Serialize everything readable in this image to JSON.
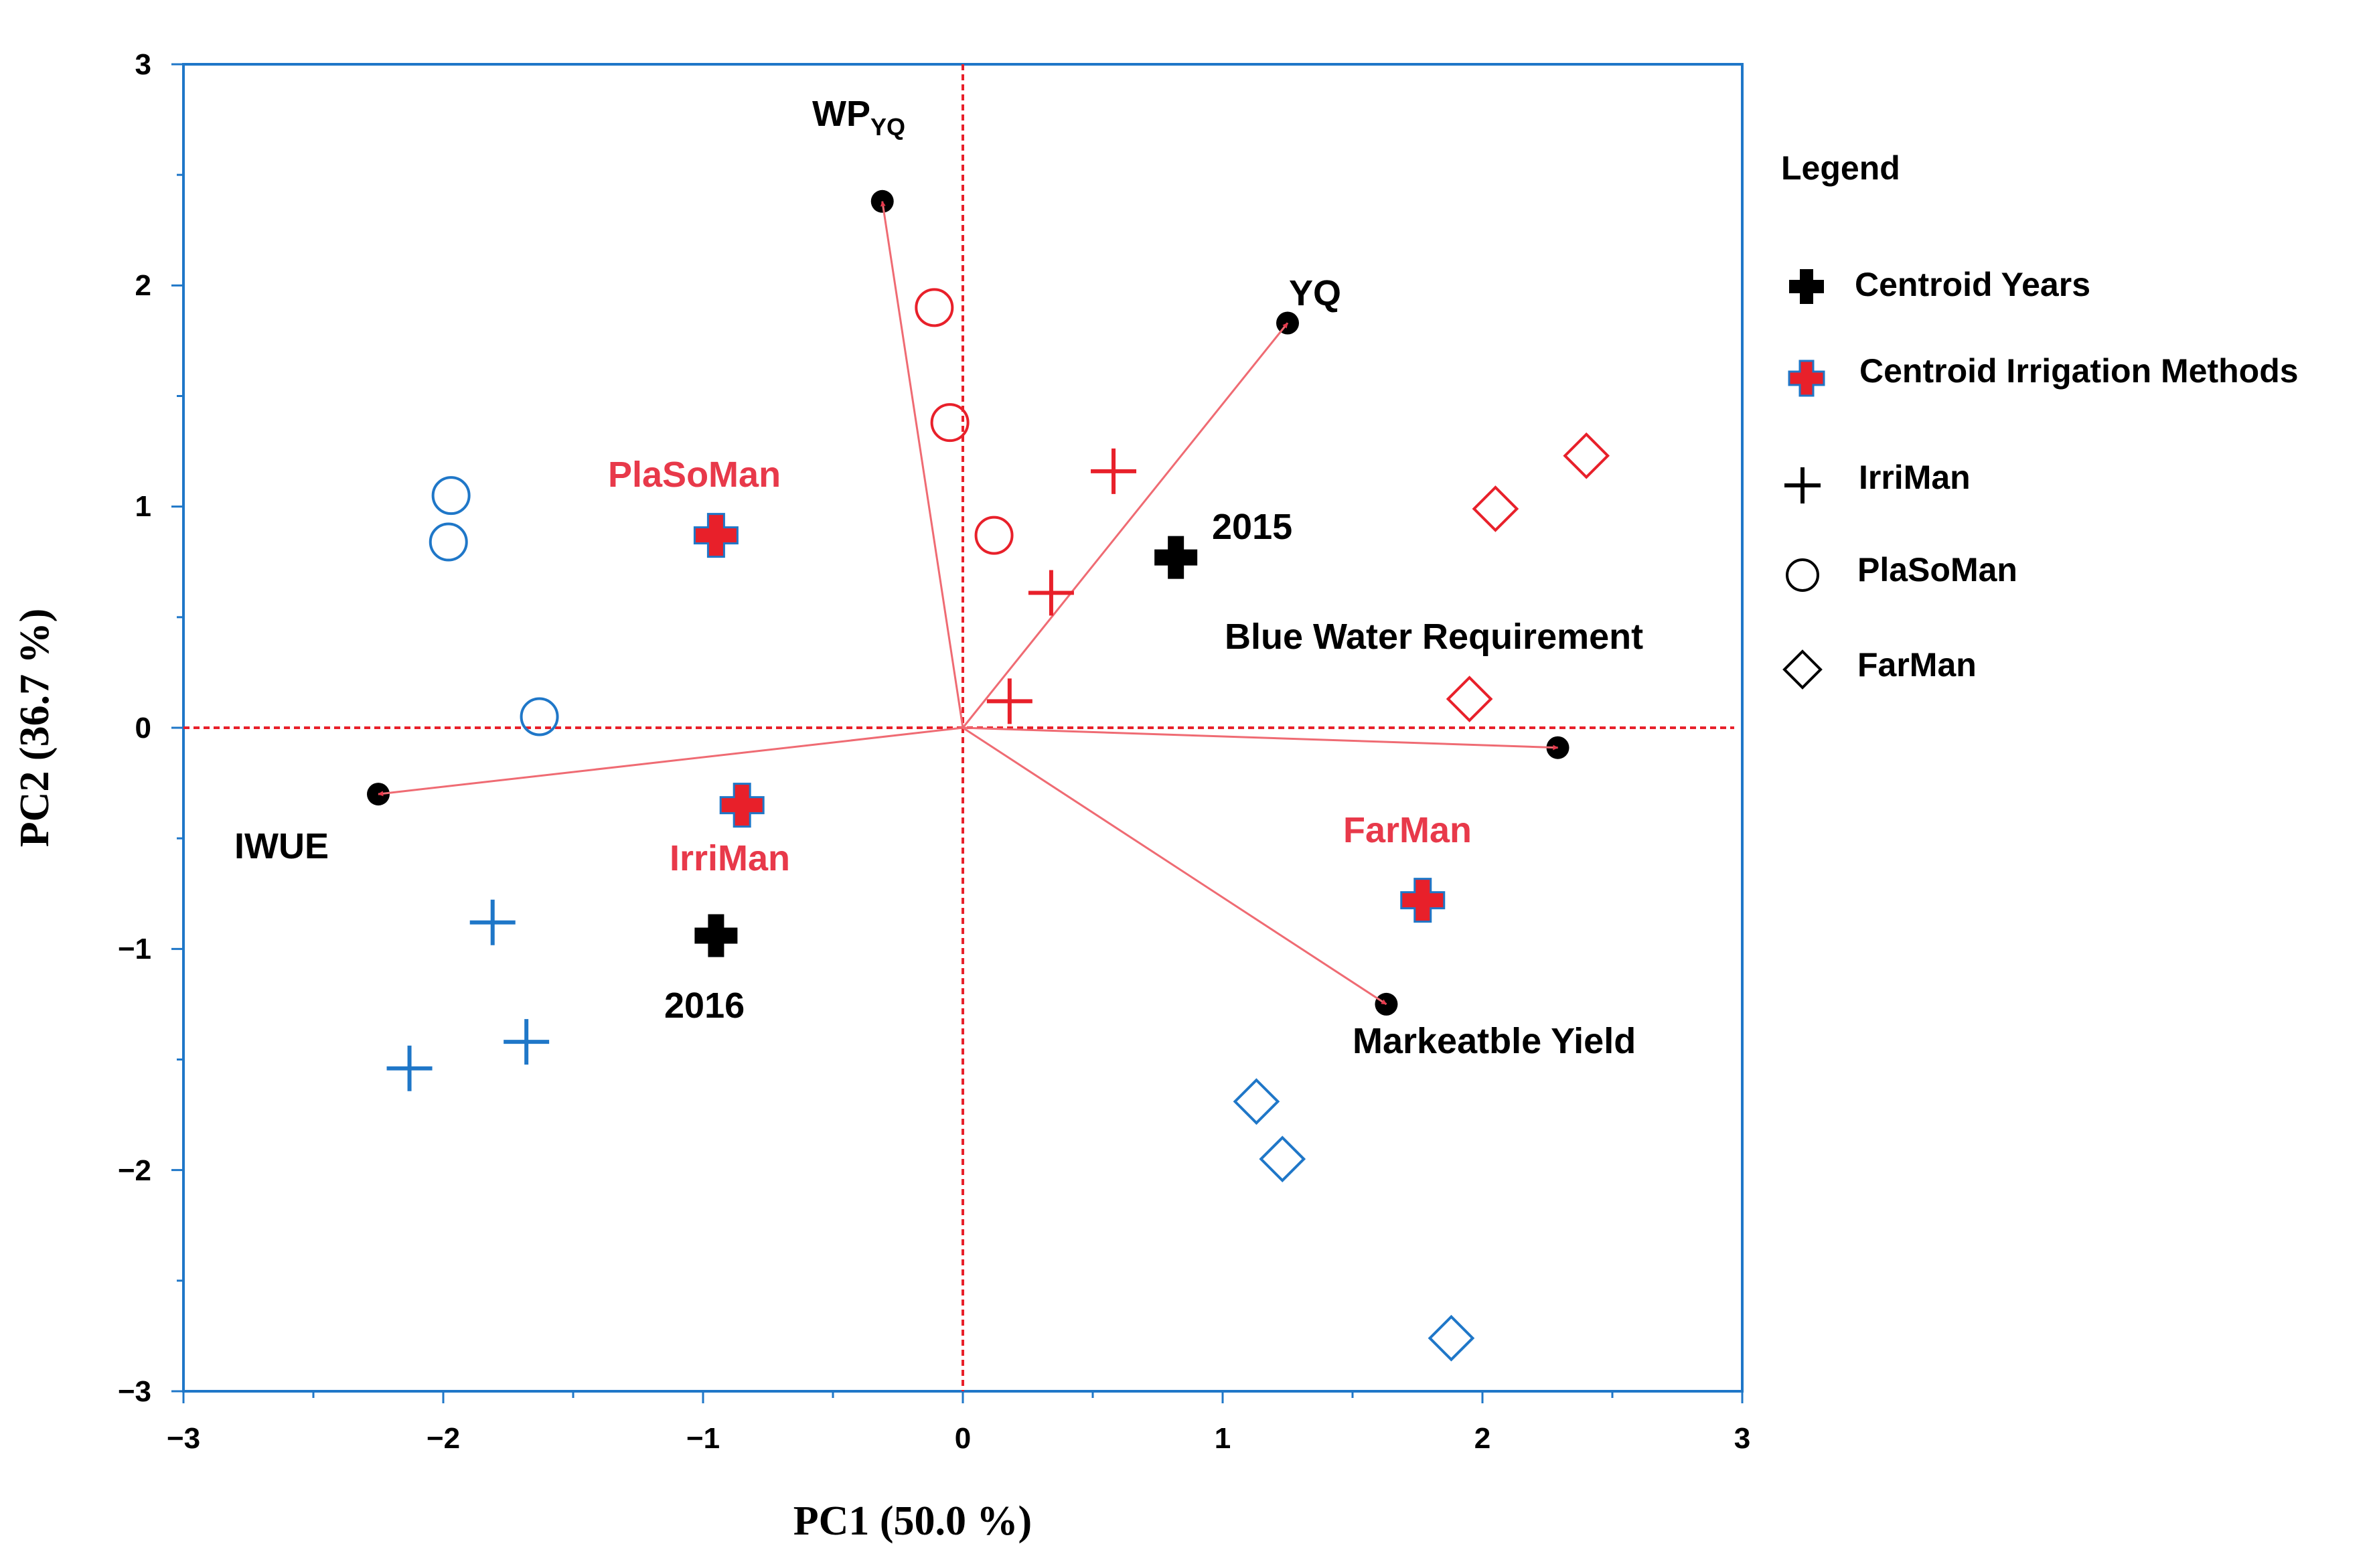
{
  "chart_data": {
    "type": "scatter",
    "subtype": "pca-biplot",
    "xlabel": "PC1  (50.0 %)",
    "ylabel": "PC2  (36.7 %)",
    "xlim": [
      -3,
      3
    ],
    "ylim": [
      -3,
      3
    ],
    "xticks": [
      -3,
      -2,
      -1,
      0,
      1,
      2,
      3
    ],
    "yticks": [
      -3,
      -2,
      -1,
      0,
      1,
      2,
      3
    ],
    "xtick_labels": [
      "−3",
      "−2",
      "−1",
      "0",
      "1",
      "2",
      "3"
    ],
    "ytick_labels": [
      "−3",
      "−2",
      "−1",
      "0",
      "1",
      "2",
      "3"
    ],
    "reference_lines": {
      "x": 0,
      "y": 0,
      "color": "#e8202a"
    },
    "colors": {
      "axis_frame": "#1f77c8",
      "blue": "#1f77c8",
      "red": "#e8202a",
      "black": "#000000",
      "arrow": "#ef6b73",
      "label_red": "#e8394a"
    },
    "loadings": [
      {
        "name": "WPYQ",
        "label": "WP",
        "label_sub": "YQ",
        "x": -0.31,
        "y": 2.38
      },
      {
        "name": "YQ",
        "label": "YQ",
        "x": 1.25,
        "y": 1.83
      },
      {
        "name": "Blue Water Requirement",
        "label": "Blue Water Requirement",
        "x": 2.29,
        "y": -0.09
      },
      {
        "name": "Markeatble Yield",
        "label": "Markeatble Yield",
        "x": 1.63,
        "y": -1.25
      },
      {
        "name": "IWUE",
        "label": "IWUE",
        "x": -2.25,
        "y": -0.3
      }
    ],
    "observations": [
      {
        "group": "PlaSoMan",
        "year": "2015",
        "marker": "circle",
        "color": "red",
        "x": -0.11,
        "y": 1.9
      },
      {
        "group": "PlaSoMan",
        "year": "2015",
        "marker": "circle",
        "color": "red",
        "x": -0.05,
        "y": 1.38
      },
      {
        "group": "PlaSoMan",
        "year": "2015",
        "marker": "circle",
        "color": "red",
        "x": 0.12,
        "y": 0.87
      },
      {
        "group": "PlaSoMan",
        "year": "2016",
        "marker": "circle",
        "color": "blue",
        "x": -1.97,
        "y": 1.05
      },
      {
        "group": "PlaSoMan",
        "year": "2016",
        "marker": "circle",
        "color": "blue",
        "x": -1.98,
        "y": 0.84
      },
      {
        "group": "PlaSoMan",
        "year": "2016",
        "marker": "circle",
        "color": "blue",
        "x": -1.63,
        "y": 0.05
      },
      {
        "group": "IrriMan",
        "year": "2015",
        "marker": "plus",
        "color": "red",
        "x": 0.58,
        "y": 1.16
      },
      {
        "group": "IrriMan",
        "year": "2015",
        "marker": "plus",
        "color": "red",
        "x": 0.34,
        "y": 0.61
      },
      {
        "group": "IrriMan",
        "year": "2015",
        "marker": "plus",
        "color": "red",
        "x": 0.18,
        "y": 0.12
      },
      {
        "group": "IrriMan",
        "year": "2016",
        "marker": "plus",
        "color": "blue",
        "x": -1.81,
        "y": -0.88
      },
      {
        "group": "IrriMan",
        "year": "2016",
        "marker": "plus",
        "color": "blue",
        "x": -1.68,
        "y": -1.42
      },
      {
        "group": "IrriMan",
        "year": "2016",
        "marker": "plus",
        "color": "blue",
        "x": -2.13,
        "y": -1.54
      },
      {
        "group": "FarMan",
        "year": "2015",
        "marker": "diamond",
        "color": "red",
        "x": 2.05,
        "y": 0.99
      },
      {
        "group": "FarMan",
        "year": "2015",
        "marker": "diamond",
        "color": "red",
        "x": 2.4,
        "y": 1.23
      },
      {
        "group": "FarMan",
        "year": "2015",
        "marker": "diamond",
        "color": "red",
        "x": 1.95,
        "y": 0.13
      },
      {
        "group": "FarMan",
        "year": "2016",
        "marker": "diamond",
        "color": "blue",
        "x": 1.13,
        "y": -1.69
      },
      {
        "group": "FarMan",
        "year": "2016",
        "marker": "diamond",
        "color": "blue",
        "x": 1.23,
        "y": -1.95
      },
      {
        "group": "FarMan",
        "year": "2016",
        "marker": "diamond",
        "color": "blue",
        "x": 1.88,
        "y": -2.76
      }
    ],
    "centroids_years": [
      {
        "label": "2015",
        "x": 0.82,
        "y": 0.77
      },
      {
        "label": "2016",
        "x": -0.95,
        "y": -0.94
      }
    ],
    "centroids_methods": [
      {
        "label": "PlaSoMan",
        "x": -0.95,
        "y": 0.87
      },
      {
        "label": "IrriMan",
        "x": -0.85,
        "y": -0.35
      },
      {
        "label": "FarMan",
        "x": 1.77,
        "y": -0.78
      }
    ],
    "legend": {
      "title": "Legend",
      "items": [
        {
          "label": "Centroid Years",
          "symbol": "bold-plus-black"
        },
        {
          "label": "Centroid Irrigation Methods",
          "symbol": "bold-plus-red"
        },
        {
          "label": "IrriMan",
          "symbol": "plus"
        },
        {
          "label": "PlaSoMan",
          "symbol": "circle"
        },
        {
          "label": "FarMan",
          "symbol": "diamond"
        }
      ]
    }
  }
}
